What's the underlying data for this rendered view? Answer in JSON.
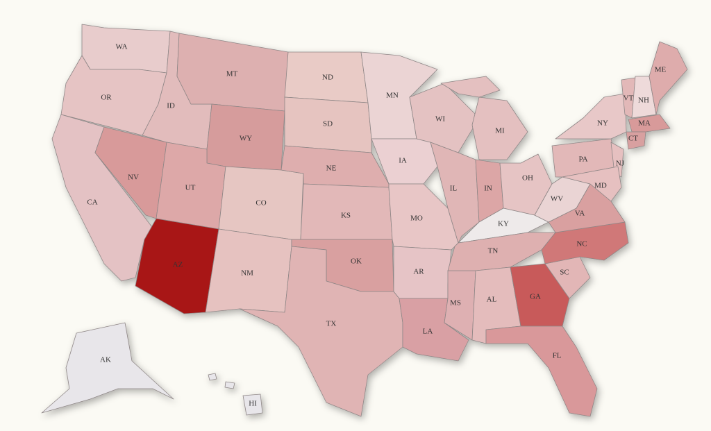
{
  "states": [
    {
      "label": "WA",
      "color": "#e8cccc"
    },
    {
      "label": "OR",
      "color": "#e6c4c4"
    },
    {
      "label": "CA",
      "color": "#e4c2c4"
    },
    {
      "label": "NV",
      "color": "#d89a9a"
    },
    {
      "label": "ID",
      "color": "#e2bcbc"
    },
    {
      "label": "MT",
      "color": "#ddb0b0"
    },
    {
      "label": "WY",
      "color": "#d69c9c"
    },
    {
      "label": "UT",
      "color": "#dda8a8"
    },
    {
      "label": "CO",
      "color": "#e6c6c2"
    },
    {
      "label": "AZ",
      "color": "#a81212"
    },
    {
      "label": "NM",
      "color": "#e6c2c0"
    },
    {
      "label": "ND",
      "color": "#e9cbc6"
    },
    {
      "label": "SD",
      "color": "#e6c4c0"
    },
    {
      "label": "NE",
      "color": "#deaeae"
    },
    {
      "label": "KS",
      "color": "#e2b8b8"
    },
    {
      "label": "OK",
      "color": "#d9a0a0"
    },
    {
      "label": "TX",
      "color": "#e0b4b4"
    },
    {
      "label": "MN",
      "color": "#ebd4d4"
    },
    {
      "label": "IA",
      "color": "#ebd0d2"
    },
    {
      "label": "MO",
      "color": "#e8c6c6"
    },
    {
      "label": "AR",
      "color": "#e6c4c6"
    },
    {
      "label": "LA",
      "color": "#d9a0a4"
    },
    {
      "label": "MS",
      "color": "#deb0b2"
    },
    {
      "label": "WI",
      "color": "#e4c2c2"
    },
    {
      "label": "IL",
      "color": "#e0b6b6"
    },
    {
      "label": "MI",
      "color": "#e4c0c0"
    },
    {
      "label": "IN",
      "color": "#dca6a6"
    },
    {
      "label": "OH",
      "color": "#e6c4c4"
    },
    {
      "label": "KY",
      "color": "#eeeaea"
    },
    {
      "label": "TN",
      "color": "#deb0b0"
    },
    {
      "label": "AL",
      "color": "#e4bcbc"
    },
    {
      "label": "GA",
      "color": "#c85a5a"
    },
    {
      "label": "FL",
      "color": "#d9989a"
    },
    {
      "label": "SC",
      "color": "#e2b6b6"
    },
    {
      "label": "NC",
      "color": "#d07878"
    },
    {
      "label": "VA",
      "color": "#d9a0a0"
    },
    {
      "label": "WV",
      "color": "#ead4d4"
    },
    {
      "label": "PA",
      "color": "#e2b8b8"
    },
    {
      "label": "NY",
      "color": "#e8c8c8"
    },
    {
      "label": "NJ",
      "color": "#e6c0c0"
    },
    {
      "label": "MD",
      "color": "#e6c0c0"
    },
    {
      "label": "VT",
      "color": "#e2b8b8"
    },
    {
      "label": "NH",
      "color": "#eedada"
    },
    {
      "label": "ME",
      "color": "#deacac"
    },
    {
      "label": "MA",
      "color": "#d89a9a"
    },
    {
      "label": "CT",
      "color": "#d8a0a0"
    },
    {
      "label": "AK",
      "color": "#e8e6ea"
    },
    {
      "label": "HI",
      "color": "#e8e6ea"
    }
  ]
}
